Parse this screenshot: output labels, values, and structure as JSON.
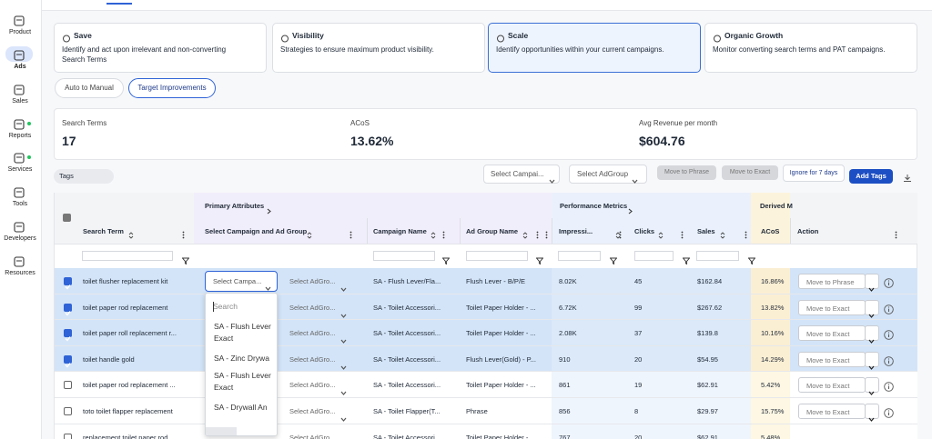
{
  "sidebar": {
    "items": [
      {
        "label": "Product"
      },
      {
        "label": "Ads",
        "active": true
      },
      {
        "label": "Sales"
      },
      {
        "label": "Reports",
        "status_dot": true
      },
      {
        "label": "Services",
        "status_dot": true
      },
      {
        "label": "Tools"
      },
      {
        "label": "Developers"
      },
      {
        "label": "Resources"
      }
    ]
  },
  "cards": [
    {
      "title": "Save",
      "description": "Identify and act upon irrelevant and non-converting Search Terms"
    },
    {
      "title": "Visibility",
      "description": "Strategies to ensure maximum product visibility."
    },
    {
      "title": "Scale",
      "description": "Identify opportunities within your current campaigns.",
      "selected": true
    },
    {
      "title": "Organic Growth",
      "description": "Monitor converting search terms and PAT campaigns."
    }
  ],
  "tabs": [
    {
      "label": "Auto to Manual"
    },
    {
      "label": "Target Improvements",
      "active": true
    }
  ],
  "stats": [
    {
      "label": "Search Terms",
      "value": "17"
    },
    {
      "label": "ACoS",
      "value": "13.62%"
    },
    {
      "label": "Avg Revenue per month",
      "value": "$604.76"
    }
  ],
  "toolbar": {
    "tags": "Tags",
    "campaign_select": "Select Campai...",
    "adgroup_select": "Select AdGroup",
    "buttons": [
      "Move to Phrase",
      "Move to Exact"
    ],
    "ignore": "Ignore for 7 days",
    "add_tags": "Add Tags"
  },
  "table": {
    "groups": [
      "Primary Attributes",
      "Performance Metrics",
      "Derived M"
    ],
    "columns": [
      "Search Term",
      "Select Campaign and Ad Group",
      "Campaign Name",
      "Ad Group Name",
      "Impressi...",
      "Clicks",
      "Sales",
      "ACoS",
      "Action"
    ],
    "rows": [
      {
        "checked": true,
        "search_term": "toilet flusher replacement kit",
        "campaign_select": "Select Campa...",
        "adgroup_select": "Select AdGro...",
        "campaign_name": "SA - Flush Lever/Fla...",
        "ad_group_name": "Flush Lever - B/P/E",
        "impressions": "8.02K",
        "clicks": "45",
        "sales": "$162.84",
        "acos": "16.86%",
        "action": "Move to Phrase"
      },
      {
        "checked": true,
        "search_term": "toilet paper rod replacement",
        "adgroup_select": "Select AdGro...",
        "campaign_name": "SA - Toilet Accessori...",
        "ad_group_name": "Toilet Paper Holder - ...",
        "impressions": "6.72K",
        "clicks": "99",
        "sales": "$267.62",
        "acos": "13.82%",
        "action": "Move to Exact"
      },
      {
        "checked": true,
        "search_term": "toilet paper roll replacement r...",
        "adgroup_select": "Select AdGro...",
        "campaign_name": "SA - Toilet Accessori...",
        "ad_group_name": "Toilet Paper Holder - ...",
        "impressions": "2.08K",
        "clicks": "37",
        "sales": "$139.8",
        "acos": "10.16%",
        "action": "Move to Exact"
      },
      {
        "checked": true,
        "search_term": "toilet handle gold",
        "adgroup_select": "Select AdGro...",
        "campaign_name": "SA - Toilet Accessori...",
        "ad_group_name": "Flush Lever(Gold) - P...",
        "impressions": "910",
        "clicks": "20",
        "sales": "$54.95",
        "acos": "14.29%",
        "action": "Move to Exact"
      },
      {
        "checked": false,
        "search_term": "toilet paper rod replacement ...",
        "adgroup_select": "Select AdGro...",
        "campaign_name": "SA - Toilet Accessori...",
        "ad_group_name": "Toilet Paper Holder - ...",
        "impressions": "861",
        "clicks": "19",
        "sales": "$62.91",
        "acos": "5.42%",
        "action": "Move to Exact"
      },
      {
        "checked": false,
        "search_term": "toto toilet flapper replacement",
        "adgroup_select": "Select AdGro...",
        "campaign_name": "SA - Toilet Flapper(T...",
        "ad_group_name": "Phrase",
        "impressions": "856",
        "clicks": "8",
        "sales": "$29.97",
        "acos": "15.75%",
        "action": "Move to Exact"
      },
      {
        "checked": false,
        "search_term": "replacement toilet paper rod",
        "adgroup_select": "Select AdGro...",
        "campaign_name": "SA - Toilet Accessori...",
        "ad_group_name": "Toilet Paper Holder - ...",
        "impressions": "767",
        "clicks": "20",
        "sales": "$62.91",
        "acos": "5.48%"
      }
    ]
  },
  "dropdown": {
    "search_placeholder": "Search",
    "options": [
      "SA - Flush Lever Exact",
      "SA - Zinc Drywa",
      "SA - Flush Lever Exact",
      "SA - Drywall An"
    ]
  }
}
